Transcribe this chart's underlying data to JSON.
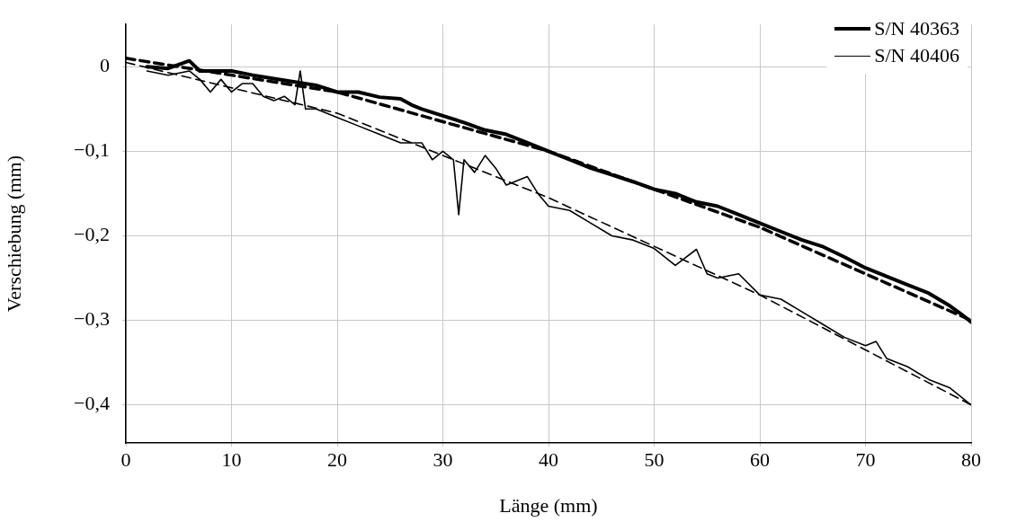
{
  "chart_data": {
    "type": "line",
    "xlabel": "Länge (mm)",
    "ylabel": "Verschiebung (mm)",
    "xlim": [
      0,
      80
    ],
    "xticks": [
      0,
      10,
      20,
      30,
      40,
      50,
      60,
      70,
      80
    ],
    "ylim": [
      -0.445,
      0.05
    ],
    "yticks": [
      {
        "value": 0,
        "label": "0"
      },
      {
        "value": -0.1,
        "label": "−0,1"
      },
      {
        "value": -0.2,
        "label": "−0,2"
      },
      {
        "value": -0.3,
        "label": "−0,3"
      },
      {
        "value": -0.4,
        "label": "−0,4"
      }
    ],
    "grid": true,
    "legend": "top right",
    "marker": "none",
    "series": [
      {
        "name": "S/N 40363",
        "color": "#000000",
        "line_style": "solid",
        "x": [
          2,
          4,
          6,
          7,
          8,
          10,
          12,
          14,
          16,
          18,
          20,
          22,
          24,
          26,
          27,
          28,
          30,
          32,
          34,
          36,
          38,
          40,
          42,
          44,
          46,
          48,
          50,
          52,
          54,
          56,
          58,
          60,
          62,
          64,
          66,
          68,
          70,
          72,
          74,
          76,
          78,
          79,
          80
        ],
        "values": [
          0.0,
          -0.002,
          0.007,
          -0.005,
          -0.005,
          -0.005,
          -0.01,
          -0.014,
          -0.018,
          -0.022,
          -0.03,
          -0.03,
          -0.036,
          -0.038,
          -0.045,
          -0.05,
          -0.058,
          -0.066,
          -0.075,
          -0.08,
          -0.09,
          -0.1,
          -0.11,
          -0.12,
          -0.128,
          -0.136,
          -0.145,
          -0.15,
          -0.16,
          -0.165,
          -0.175,
          -0.185,
          -0.195,
          -0.205,
          -0.213,
          -0.225,
          -0.238,
          -0.248,
          -0.258,
          -0.268,
          -0.283,
          -0.292,
          -0.302
        ]
      },
      {
        "name": "S/N 40406",
        "color": "#000000",
        "line_style": "solid",
        "x": [
          2,
          4,
          6,
          7,
          8,
          9,
          10,
          11,
          12,
          13,
          14,
          15,
          16,
          16.5,
          17,
          18,
          20,
          22,
          24,
          26,
          28,
          29,
          30,
          31,
          31.5,
          32,
          33,
          34,
          35,
          36,
          38,
          39,
          40,
          42,
          44,
          46,
          48,
          50,
          52,
          54,
          55,
          56,
          58,
          60,
          62,
          64,
          66,
          68,
          70,
          71,
          72,
          74,
          76,
          78,
          80
        ],
        "values": [
          -0.005,
          -0.01,
          -0.005,
          -0.015,
          -0.03,
          -0.015,
          -0.03,
          -0.02,
          -0.02,
          -0.035,
          -0.04,
          -0.035,
          -0.045,
          -0.005,
          -0.05,
          -0.05,
          -0.06,
          -0.07,
          -0.08,
          -0.09,
          -0.09,
          -0.11,
          -0.1,
          -0.11,
          -0.175,
          -0.11,
          -0.125,
          -0.105,
          -0.12,
          -0.14,
          -0.13,
          -0.15,
          -0.165,
          -0.17,
          -0.185,
          -0.2,
          -0.205,
          -0.215,
          -0.235,
          -0.216,
          -0.245,
          -0.25,
          -0.245,
          -0.27,
          -0.275,
          -0.29,
          -0.305,
          -0.32,
          -0.33,
          -0.325,
          -0.345,
          -0.355,
          -0.37,
          -0.38,
          -0.4
        ]
      },
      {
        "type": "line",
        "color": "#000000",
        "line_style": "dashed",
        "x": [
          0,
          20,
          40,
          60,
          80
        ],
        "values": [
          0.01,
          -0.03,
          -0.1,
          -0.19,
          -0.3
        ]
      },
      {
        "type": "line",
        "color": "#000000",
        "line_style": "dashed",
        "x": [
          0,
          20,
          40,
          60,
          80
        ],
        "values": [
          0.005,
          -0.055,
          -0.155,
          -0.27,
          -0.4
        ]
      }
    ]
  }
}
